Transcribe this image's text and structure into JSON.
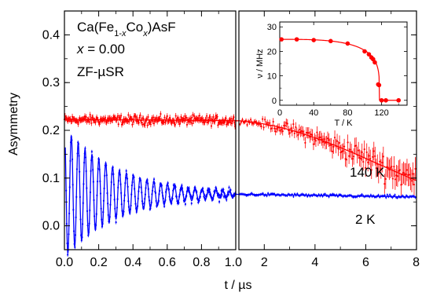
{
  "chart_data": {
    "type": "scatter",
    "y_axis": {
      "label": "Asymmetry",
      "range": [
        -0.05,
        0.45
      ],
      "ticks": [
        "0.0",
        "0.1",
        "0.2",
        "0.3",
        "0.4"
      ]
    },
    "x_axis": {
      "label": "t / µs",
      "left_panel": {
        "range": [
          0.0,
          1.0
        ],
        "ticks": [
          "0.0",
          "0.2",
          "0.4",
          "0.6",
          "0.8",
          "1.0"
        ]
      },
      "right_panel": {
        "range": [
          1.0,
          8.0
        ],
        "ticks": [
          "2",
          "4",
          "6",
          "8"
        ]
      }
    },
    "annotations": {
      "compound_prefix": "Ca(Fe",
      "compound_sub1": "1-",
      "compound_subx1": "x",
      "compound_mid": "Co",
      "compound_subx2": "x",
      "compound_suffix": ")AsF",
      "doping_var": "x",
      "doping_value": " = 0.00",
      "technique": "ZF-µSR"
    },
    "series": [
      {
        "label": "140 K",
        "color": "#ff0000",
        "model": "slow relaxation, A(t) = 0.222 * exp(-(t/8.6)^2.2)",
        "points": [
          [
            0.0,
            0.222
          ],
          [
            1.0,
            0.219
          ],
          [
            2.0,
            0.209
          ],
          [
            3.0,
            0.192
          ],
          [
            4.0,
            0.17
          ],
          [
            5.0,
            0.144
          ],
          [
            6.0,
            0.118
          ],
          [
            7.0,
            0.093
          ],
          [
            8.0,
            0.07
          ]
        ]
      },
      {
        "label": "2 K",
        "color": "#0000ff",
        "model": "damped oscillation at 24.9 MHz about baseline 0.065",
        "points": [
          [
            0.0,
            0.2
          ],
          [
            0.02,
            -0.04
          ],
          [
            0.04,
            0.19
          ],
          [
            0.06,
            -0.02
          ],
          [
            0.1,
            0.17
          ],
          [
            0.3,
            0.1
          ],
          [
            0.6,
            0.075
          ],
          [
            1.0,
            0.068
          ],
          [
            4.0,
            0.063
          ],
          [
            8.0,
            0.06
          ]
        ]
      }
    ],
    "inset": {
      "type": "line",
      "xlabel": "T / K",
      "ylabel": "ν / MHz",
      "xlim": [
        0,
        150
      ],
      "ylim": [
        -2,
        32
      ],
      "xticks": [
        "0",
        "40",
        "80",
        "120"
      ],
      "yticks": [
        "0",
        "10",
        "20",
        "30"
      ],
      "color": "#ff0000",
      "x": [
        2,
        20,
        40,
        60,
        80,
        100,
        105,
        108,
        110,
        112,
        116,
        117,
        120,
        125,
        140
      ],
      "y": [
        24.9,
        24.9,
        24.6,
        24.2,
        23.2,
        20.0,
        18.8,
        17.5,
        16.8,
        15.5,
        6.5,
        6.2,
        0.0,
        0.0,
        0.0
      ]
    }
  }
}
